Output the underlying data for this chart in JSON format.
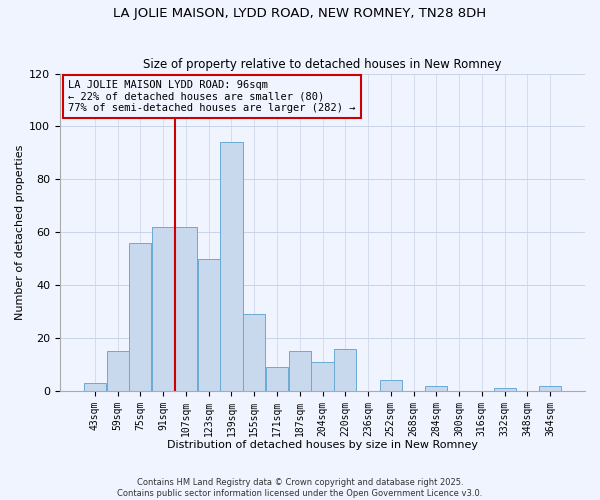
{
  "title": "LA JOLIE MAISON, LYDD ROAD, NEW ROMNEY, TN28 8DH",
  "subtitle": "Size of property relative to detached houses in New Romney",
  "xlabel": "Distribution of detached houses by size in New Romney",
  "ylabel": "Number of detached properties",
  "bar_labels": [
    "43sqm",
    "59sqm",
    "75sqm",
    "91sqm",
    "107sqm",
    "123sqm",
    "139sqm",
    "155sqm",
    "171sqm",
    "187sqm",
    "204sqm",
    "220sqm",
    "236sqm",
    "252sqm",
    "268sqm",
    "284sqm",
    "300sqm",
    "316sqm",
    "332sqm",
    "348sqm",
    "364sqm"
  ],
  "bar_values": [
    3,
    15,
    56,
    62,
    62,
    50,
    94,
    29,
    9,
    15,
    11,
    16,
    0,
    4,
    0,
    2,
    0,
    0,
    1,
    0,
    2
  ],
  "bar_color": "#c8d9ee",
  "bar_edge_color": "#6aaad4",
  "vline_position": 3.5,
  "vline_color": "#cc0000",
  "annotation_title": "LA JOLIE MAISON LYDD ROAD: 96sqm",
  "annotation_line1": "← 22% of detached houses are smaller (80)",
  "annotation_line2": "77% of semi-detached houses are larger (282) →",
  "annotation_box_edge": "#cc0000",
  "ylim": [
    0,
    120
  ],
  "yticks": [
    0,
    20,
    40,
    60,
    80,
    100,
    120
  ],
  "footer1": "Contains HM Land Registry data © Crown copyright and database right 2025.",
  "footer2": "Contains public sector information licensed under the Open Government Licence v3.0.",
  "background_color": "#f0f4ff",
  "grid_color": "#c8d4e8"
}
